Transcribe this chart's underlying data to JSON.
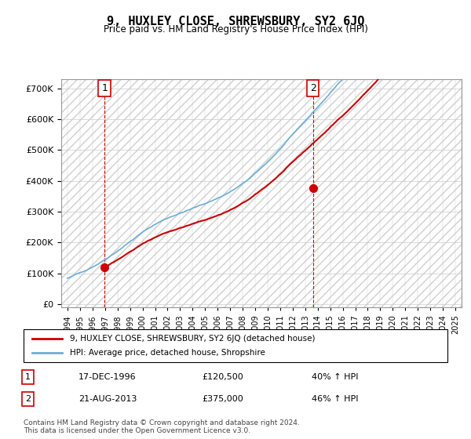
{
  "title": "9, HUXLEY CLOSE, SHREWSBURY, SY2 6JQ",
  "subtitle": "Price paid vs. HM Land Registry's House Price Index (HPI)",
  "sale1_date": "1996-12-17",
  "sale1_price": 120500,
  "sale1_label": "1",
  "sale2_date": "2013-08-21",
  "sale2_price": 375000,
  "sale2_label": "2",
  "hpi_color": "#6baed6",
  "price_color": "#cc0000",
  "marker_color": "#cc0000",
  "vline_color": "#cc0000",
  "legend1": "9, HUXLEY CLOSE, SHREWSBURY, SY2 6JQ (detached house)",
  "legend2": "HPI: Average price, detached house, Shropshire",
  "table_row1": [
    "1",
    "17-DEC-1996",
    "£120,500",
    "40% ↑ HPI"
  ],
  "table_row2": [
    "2",
    "21-AUG-2013",
    "£375,000",
    "46% ↑ HPI"
  ],
  "footnote": "Contains HM Land Registry data © Crown copyright and database right 2024.\nThis data is licensed under the Open Government Licence v3.0.",
  "ylabel_format": "£{0}K",
  "yticks": [
    0,
    100000,
    200000,
    300000,
    400000,
    500000,
    600000,
    700000
  ],
  "ylim": [
    -10000,
    730000
  ],
  "xlim_start": 1993.5,
  "xlim_end": 2025.5,
  "background_hatch_color": "#e8e8e8",
  "grid_color": "#cccccc"
}
